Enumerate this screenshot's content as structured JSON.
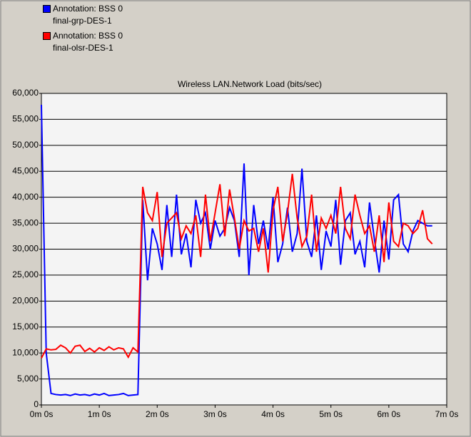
{
  "chart_data": {
    "type": "line",
    "title": "Wireless LAN.Network Load (bits/sec)",
    "x": [
      0,
      5,
      10,
      15,
      20,
      25,
      30,
      35,
      40,
      45,
      50,
      55,
      60,
      65,
      70,
      75,
      80,
      85,
      90,
      95,
      100,
      105,
      110,
      115,
      120,
      125,
      130,
      135,
      140,
      145,
      150,
      155,
      160,
      165,
      170,
      175,
      180,
      185,
      190,
      195,
      200,
      205,
      210,
      215,
      220,
      225,
      230,
      235,
      240,
      245,
      250,
      255,
      260,
      265,
      270,
      275,
      280,
      285,
      290,
      295,
      300,
      305,
      310,
      315,
      320,
      325,
      330,
      335,
      340,
      345,
      350,
      355,
      360,
      365,
      370,
      375,
      380,
      385,
      390,
      395,
      400,
      405
    ],
    "series": [
      {
        "name": "Annotation: BSS 0\nfinal-grp-DES-1",
        "color": "#0000ff",
        "values": [
          57800,
          10000,
          2200,
          2000,
          1900,
          2000,
          1800,
          2100,
          1900,
          2000,
          1800,
          2100,
          1900,
          2200,
          1800,
          1900,
          2000,
          2200,
          1800,
          1900,
          2000,
          39500,
          24000,
          34000,
          31000,
          26000,
          38500,
          28500,
          40500,
          29000,
          33000,
          26500,
          39500,
          35000,
          37000,
          30000,
          35500,
          32500,
          34000,
          38000,
          35500,
          28500,
          46500,
          25000,
          38500,
          31000,
          35500,
          30000,
          40000,
          27500,
          31000,
          38000,
          29500,
          33000,
          45500,
          31500,
          28500,
          36500,
          26000,
          33500,
          30500,
          39500,
          27000,
          35500,
          37000,
          29000,
          31500,
          26500,
          39000,
          32000,
          25500,
          35500,
          28000,
          39500,
          40500,
          31000,
          29500,
          33500,
          35500,
          35000,
          34500,
          34500
        ]
      },
      {
        "name": "Annotation: BSS 0\nfinal-olsr-DES-1",
        "color": "#ff0000",
        "values": [
          9000,
          10800,
          10600,
          10700,
          11500,
          11000,
          10000,
          11300,
          11500,
          10300,
          10900,
          10200,
          11000,
          10500,
          11200,
          10600,
          11000,
          10800,
          9200,
          11000,
          10200,
          42000,
          37000,
          35500,
          41000,
          28500,
          35000,
          36000,
          37000,
          32000,
          34500,
          33000,
          36500,
          28500,
          40500,
          31500,
          37000,
          42500,
          32500,
          41500,
          36000,
          30000,
          35500,
          33500,
          34000,
          29500,
          34000,
          25500,
          37500,
          42000,
          31500,
          37000,
          44500,
          36000,
          30500,
          32500,
          40500,
          29500,
          36000,
          34000,
          36500,
          33000,
          42000,
          34000,
          32000,
          40500,
          36500,
          33000,
          34500,
          29500,
          36500,
          27500,
          39000,
          31500,
          30500,
          35000,
          34500,
          33000,
          34000,
          37500,
          32000,
          31000
        ]
      }
    ],
    "xlim": [
      0,
      420
    ],
    "xticks": [
      {
        "value": 0,
        "label": "0m 0s"
      },
      {
        "value": 60,
        "label": "1m 0s"
      },
      {
        "value": 120,
        "label": "2m 0s"
      },
      {
        "value": 180,
        "label": "3m 0s"
      },
      {
        "value": 240,
        "label": "4m 0s"
      },
      {
        "value": 300,
        "label": "5m 0s"
      },
      {
        "value": 360,
        "label": "6m 0s"
      },
      {
        "value": 420,
        "label": "7m 0s"
      }
    ],
    "ylim": [
      0,
      60000
    ],
    "yticks": [
      0,
      {
        "value": 5000,
        "label": "5,000"
      },
      {
        "value": 10000,
        "label": "10,000"
      },
      {
        "value": 15000,
        "label": "15,000"
      },
      {
        "value": 20000,
        "label": "20,000"
      },
      {
        "value": 25000,
        "label": "25,000"
      },
      {
        "value": 30000,
        "label": "30,000"
      },
      {
        "value": 35000,
        "label": "35,000"
      },
      {
        "value": 40000,
        "label": "40,000"
      },
      {
        "value": 45000,
        "label": "45,000"
      },
      {
        "value": 50000,
        "label": "50,000"
      },
      {
        "value": 55000,
        "label": "55,000"
      },
      {
        "value": 60000,
        "label": "60,000"
      }
    ],
    "grid": true
  }
}
